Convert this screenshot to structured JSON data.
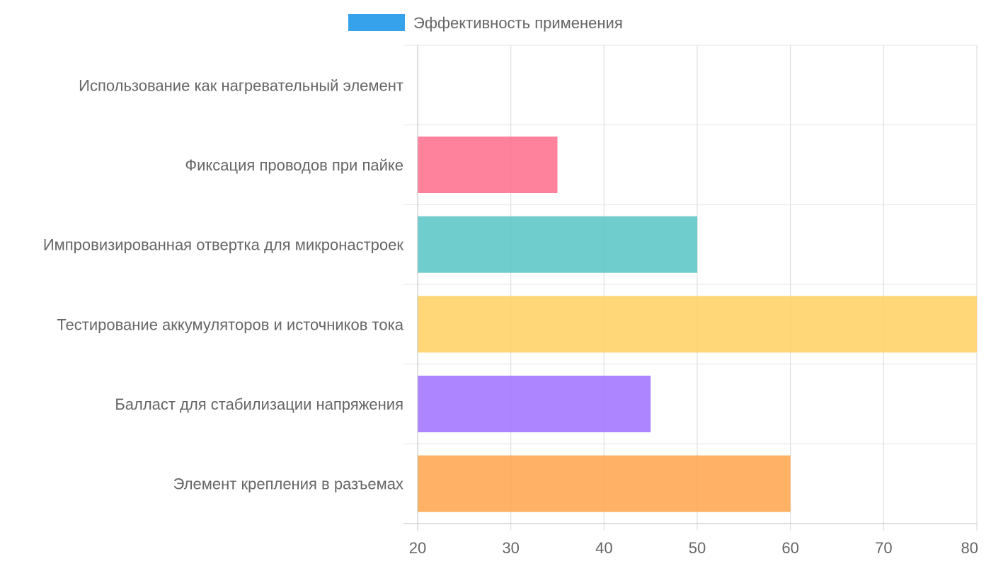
{
  "chart_data": {
    "type": "bar",
    "orientation": "horizontal",
    "categories": [
      "Использование как нагревательный элемент",
      "Фиксация проводов при пайке",
      "Импровизированная отвертка для микронастроек",
      "Тестирование аккумуляторов и источников тока",
      "Балласт для стабилизации напряжения",
      "Элемент крепления в разъемах"
    ],
    "series": [
      {
        "name": "Эффективность применения",
        "values": [
          20,
          35,
          50,
          80,
          45,
          60
        ],
        "colors": [
          "#4bc0c0",
          "#ff6384",
          "#4bc0c0",
          "#ffcd56",
          "#9966ff",
          "#ff9f40"
        ]
      }
    ],
    "legend": {
      "label": "Эффективность применения",
      "color": "#36a2eb",
      "position": "top"
    },
    "xlim": [
      20,
      80
    ],
    "x_ticks": [
      20,
      30,
      40,
      50,
      60,
      70,
      80
    ],
    "grid": true
  }
}
